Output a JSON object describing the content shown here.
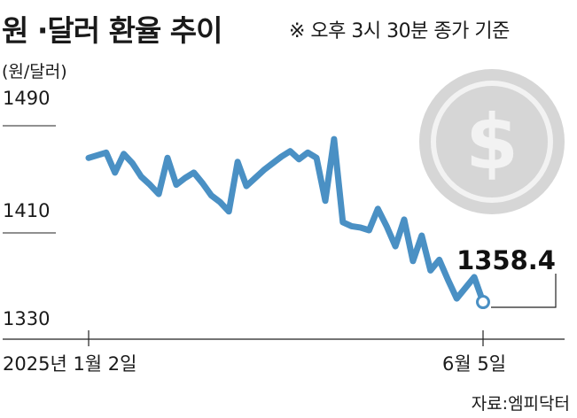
{
  "title": "원 ·달러 환율 추이",
  "note": "※ 오후 3시 30분 종가 기준",
  "unit_label": "(원/달러)",
  "source": "자료:엠피닥터",
  "colors": {
    "line": "#4a90c4",
    "coin": "#d6d6d6",
    "coin_center": "#f2f2f2"
  },
  "icon": "dollar-coin-icon",
  "chart_data": {
    "type": "line",
    "ylim": [
      1330,
      1500
    ],
    "yticks": [
      "1490",
      "1410",
      "1330"
    ],
    "yticks_values": [
      1490,
      1410,
      1330
    ],
    "x_labels": [
      "2025년 1월 2일",
      "6월 5일"
    ],
    "series": [
      {
        "values": [
          1466,
          1468,
          1470,
          1455,
          1469,
          1462,
          1452,
          1446,
          1439,
          1466,
          1446,
          1451,
          1455,
          1447,
          1438,
          1433,
          1426,
          1463,
          1445,
          1451,
          1457,
          1462,
          1467,
          1471,
          1465,
          1470,
          1466,
          1434,
          1480,
          1418,
          1415,
          1414,
          1412,
          1428,
          1415,
          1400,
          1420,
          1389,
          1408,
          1382,
          1390,
          1375,
          1361,
          1369,
          1377,
          1358.4
        ]
      }
    ],
    "last_value_label": "1358.4"
  }
}
